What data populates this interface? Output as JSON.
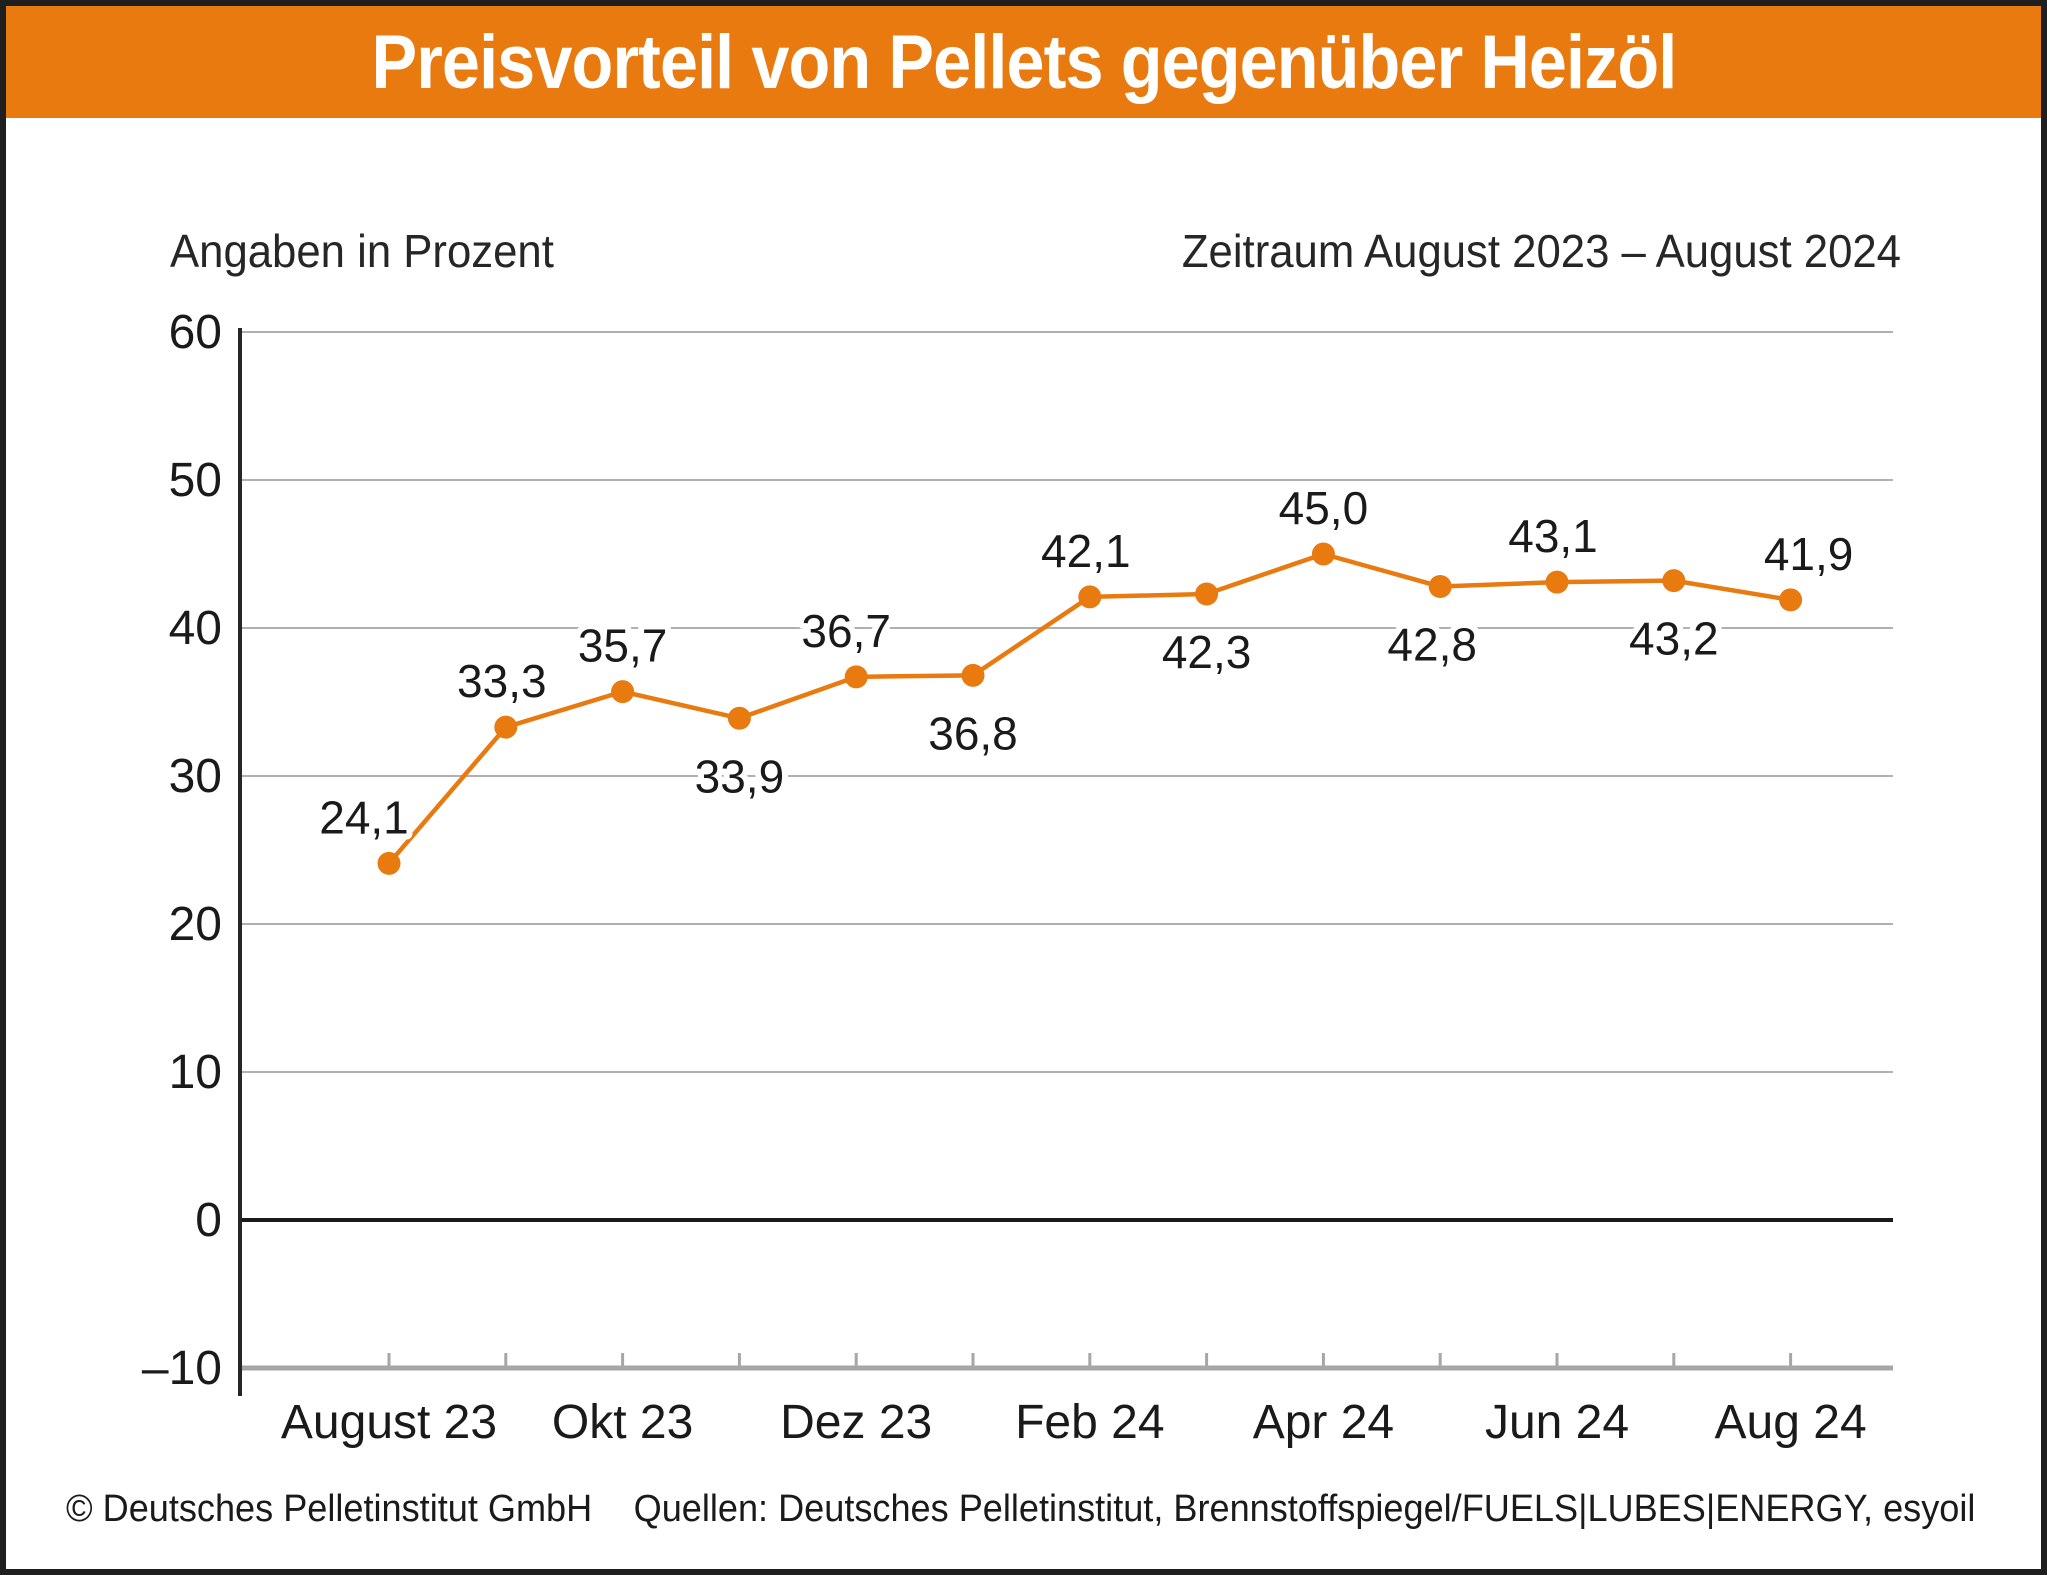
{
  "header": {
    "title": "Preisvorteil von Pellets gegenüber Heizöl",
    "bg_color": "#E87A10",
    "text_color": "#FFFFFF"
  },
  "subtitles": {
    "left": "Angaben in Prozent",
    "right": "Zeitraum August 2023 – August 2024"
  },
  "footer": {
    "copyright": "© Deutsches Pelletinstitut GmbH",
    "sources": "Quellen: Deutsches Pelletinstitut, Brennstoffspiegel/FUELS|LUBES|ENERGY, esyoil"
  },
  "colors": {
    "accent_orange": "#E87A10",
    "grid_gray": "#b0b0b0",
    "baseline_gray": "#a6a6a6",
    "zero_line_black": "#1a1a1a",
    "axis_dark": "#262626",
    "label_dark": "#1a1a1a",
    "frame_dark": "#1f1f1f"
  },
  "chart_data": {
    "type": "line",
    "title": "Preisvorteil von Pellets gegenüber Heizöl",
    "unit_note": "Angaben in Prozent",
    "period_note": "Zeitraum August 2023 – August 2024",
    "n_points": 13,
    "values": [
      24.1,
      33.3,
      35.7,
      33.9,
      36.7,
      36.8,
      42.1,
      42.3,
      45.0,
      42.8,
      43.1,
      43.2,
      41.9
    ],
    "point_labels": [
      {
        "text": "24,1",
        "pos": "above",
        "dx": -25
      },
      {
        "text": "33,3",
        "pos": "above",
        "dx": -4
      },
      {
        "text": "35,7",
        "pos": "above",
        "dx": 0
      },
      {
        "text": "33,9",
        "pos": "below",
        "dx": 0
      },
      {
        "text": "36,7",
        "pos": "above",
        "dx": -10
      },
      {
        "text": "36,8",
        "pos": "below",
        "dx": 0
      },
      {
        "text": "42,1",
        "pos": "above",
        "dx": -4
      },
      {
        "text": "42,3",
        "pos": "below",
        "dx": 0
      },
      {
        "text": "45,0",
        "pos": "above",
        "dx": 0
      },
      {
        "text": "42,8",
        "pos": "below",
        "dx": -8
      },
      {
        "text": "43,1",
        "pos": "above",
        "dx": -4
      },
      {
        "text": "43,2",
        "pos": "below",
        "dx": 0
      },
      {
        "text": "41,9",
        "pos": "above",
        "dx": 18
      }
    ],
    "x_ticks": [
      {
        "index": 0,
        "label": "August 23"
      },
      {
        "index": 2,
        "label": "Okt 23"
      },
      {
        "index": 4,
        "label": "Dez 23"
      },
      {
        "index": 6,
        "label": "Feb 24"
      },
      {
        "index": 8,
        "label": "Apr 24"
      },
      {
        "index": 10,
        "label": "Jun 24"
      },
      {
        "index": 12,
        "label": "Aug 24"
      }
    ],
    "y_ticks": [
      {
        "value": 60,
        "label": "60"
      },
      {
        "value": 50,
        "label": "50"
      },
      {
        "value": 40,
        "label": "40"
      },
      {
        "value": 30,
        "label": "30"
      },
      {
        "value": 20,
        "label": "20"
      },
      {
        "value": 10,
        "label": "10"
      },
      {
        "value": 0,
        "label": "0"
      },
      {
        "value": -10,
        "label": "–10"
      }
    ],
    "ylim": [
      -10,
      60
    ],
    "grid": "horizontal",
    "zero_line": true,
    "legend": "none",
    "series_color": "#E87A10"
  }
}
